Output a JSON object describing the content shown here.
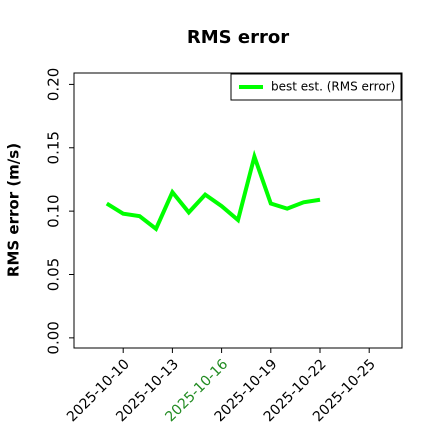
{
  "chart_data": {
    "type": "line",
    "title": "RMS error",
    "y_label": "RMS error (m/s)",
    "x": [
      "2025-10-09",
      "2025-10-10",
      "2025-10-11",
      "2025-10-12",
      "2025-10-13",
      "2025-10-14",
      "2025-10-15",
      "2025-10-16",
      "2025-10-17",
      "2025-10-18",
      "2025-10-19",
      "2025-10-20",
      "2025-10-21",
      "2025-10-22"
    ],
    "series": [
      {
        "name": "best est. (RMS error)",
        "color": "#00ff00",
        "values": [
          0.106,
          0.098,
          0.096,
          0.086,
          0.115,
          0.099,
          0.113,
          0.104,
          0.093,
          0.143,
          0.106,
          0.102,
          0.107,
          0.109
        ]
      }
    ],
    "xlim": [
      "2025-10-07",
      "2025-10-27"
    ],
    "xticks": [
      "2025-10-10",
      "2025-10-13",
      "2025-10-16",
      "2025-10-19",
      "2025-10-22",
      "2025-10-25"
    ],
    "highlight_xtick_index": 2,
    "highlight_color": "#228b22",
    "ylim": [
      -0.008,
      0.209
    ],
    "yticks": [
      {
        "value": 0,
        "label": "0.00"
      },
      {
        "value": 0.05,
        "label": "0.05"
      },
      {
        "value": 0.1,
        "label": "0.10"
      },
      {
        "value": 0.15,
        "label": "0.15"
      },
      {
        "value": 0.2,
        "label": "0.20"
      }
    ],
    "legend": "upper right"
  }
}
